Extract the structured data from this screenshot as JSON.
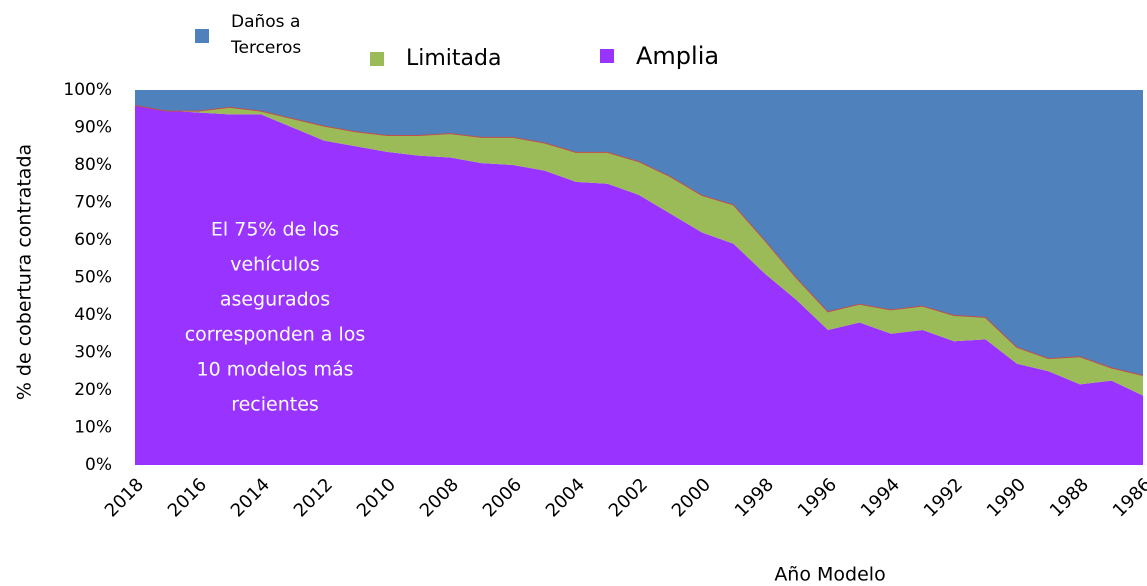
{
  "chart_data": {
    "type": "stacked_area",
    "xlabel": "Año Modelo",
    "ylabel": "% de cobertura contratada",
    "annotation": [
      "El 75% de los",
      "vehículos",
      "asegurados",
      "corresponden a los",
      "10 modelos más",
      "recientes"
    ],
    "categories": [
      "2018",
      null,
      "2016",
      null,
      "2014",
      null,
      "2012",
      null,
      "2010",
      null,
      "2008",
      null,
      "2006",
      null,
      "2004",
      null,
      "2002",
      null,
      "2000",
      null,
      "1998",
      null,
      "1996",
      null,
      "1994",
      null,
      "1992",
      null,
      "1990",
      null,
      "1988",
      null,
      "1986"
    ],
    "series": [
      {
        "name": "Daños a Terceros",
        "color": "#4f81bd",
        "values": [
          4,
          5.5,
          5.5,
          4.5,
          5.5,
          7.5,
          9.5,
          11,
          12,
          12,
          11.5,
          12.5,
          12.5,
          14,
          16.5,
          16.5,
          19,
          23,
          28,
          30.5,
          40,
          50,
          59,
          57,
          58.5,
          57.5,
          60,
          60.5,
          68.5,
          71.5,
          71,
          74,
          76
        ]
      },
      {
        "name": "Limitada",
        "color": "#9bbb59",
        "values": [
          0,
          0,
          0.5,
          2,
          1,
          2.5,
          4,
          4,
          4.5,
          5.5,
          6.5,
          7,
          7.5,
          7.5,
          8,
          8.5,
          9,
          10,
          10,
          10.5,
          9,
          6,
          5,
          5,
          6.5,
          6.5,
          7,
          6,
          4.5,
          3.5,
          7.5,
          3.5,
          5.5
        ]
      },
      {
        "name": "Amplia",
        "color": "#9933ff",
        "values": [
          96,
          94.5,
          94,
          93.5,
          93.5,
          90,
          86.5,
          85,
          83.5,
          82.5,
          82,
          80.5,
          80,
          78.5,
          75.5,
          75,
          72,
          67,
          62,
          59,
          51,
          44,
          36,
          38,
          35,
          36,
          33,
          33.5,
          27,
          25,
          21.5,
          22.5,
          18.5
        ]
      }
    ],
    "ylim": [
      0,
      100
    ],
    "yticks": [
      {
        "value": 0,
        "label": "0%"
      },
      {
        "value": 10,
        "label": "10%"
      },
      {
        "value": 20,
        "label": "20%"
      },
      {
        "value": 30,
        "label": "30%"
      },
      {
        "value": 40,
        "label": "40%"
      },
      {
        "value": 50,
        "label": "50%"
      },
      {
        "value": 60,
        "label": "60%"
      },
      {
        "value": 70,
        "label": "70%"
      },
      {
        "value": 80,
        "label": "80%"
      },
      {
        "value": 90,
        "label": "90%"
      },
      {
        "value": 100,
        "label": "100%"
      }
    ]
  }
}
